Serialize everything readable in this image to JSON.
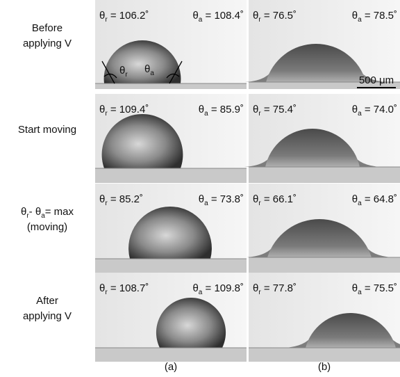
{
  "row_labels": [
    [
      [
        {
          "text": "Before"
        }
      ],
      [
        {
          "text": "applying V"
        }
      ]
    ],
    [
      [
        {
          "text": "Start moving"
        }
      ]
    ],
    [
      [
        {
          "text": "θ"
        },
        {
          "text": "r",
          "sub": true
        },
        {
          "text": "- θ"
        },
        {
          "text": "a",
          "sub": true
        },
        {
          "text": "= max"
        }
      ],
      [
        {
          "text": "(moving)"
        }
      ]
    ],
    [
      [
        {
          "text": "After"
        }
      ],
      [
        {
          "text": "applying V"
        }
      ]
    ]
  ],
  "panels": [
    [
      {
        "left": [
          {
            "text": "θ"
          },
          {
            "text": "r",
            "sub": true
          },
          {
            "text": " = 106.2˚"
          }
        ],
        "right": [
          {
            "text": "θ"
          },
          {
            "text": "a",
            "sub": true
          },
          {
            "text": " = 108.4˚"
          }
        ]
      },
      {
        "left": [
          {
            "text": "θ"
          },
          {
            "text": "r",
            "sub": true
          },
          {
            "text": " = 76.5˚"
          }
        ],
        "right": [
          {
            "text": "θ"
          },
          {
            "text": "a",
            "sub": true
          },
          {
            "text": " = 78.5˚"
          }
        ]
      }
    ],
    [
      {
        "left": [
          {
            "text": "θ"
          },
          {
            "text": "r",
            "sub": true
          },
          {
            "text": " = 109.4˚"
          }
        ],
        "right": [
          {
            "text": "θ"
          },
          {
            "text": "a",
            "sub": true
          },
          {
            "text": " = 85.9˚"
          }
        ]
      },
      {
        "left": [
          {
            "text": "θ"
          },
          {
            "text": "r",
            "sub": true
          },
          {
            "text": " = 75.4˚"
          }
        ],
        "right": [
          {
            "text": "θ"
          },
          {
            "text": "a",
            "sub": true
          },
          {
            "text": " = 74.0˚"
          }
        ]
      }
    ],
    [
      {
        "left": [
          {
            "text": "θ"
          },
          {
            "text": "r",
            "sub": true
          },
          {
            "text": " = 85.2˚"
          }
        ],
        "right": [
          {
            "text": "θ"
          },
          {
            "text": "a",
            "sub": true
          },
          {
            "text": " = 73.8˚"
          }
        ]
      },
      {
        "left": [
          {
            "text": "θ"
          },
          {
            "text": "r",
            "sub": true
          },
          {
            "text": " = 66.1˚"
          }
        ],
        "right": [
          {
            "text": "θ"
          },
          {
            "text": "a",
            "sub": true
          },
          {
            "text": " = 64.8˚"
          }
        ]
      }
    ],
    [
      {
        "left": [
          {
            "text": "θ"
          },
          {
            "text": "r",
            "sub": true
          },
          {
            "text": " = 108.7˚"
          }
        ],
        "right": [
          {
            "text": "θ"
          },
          {
            "text": "a",
            "sub": true
          },
          {
            "text": " = 109.8˚"
          }
        ]
      },
      {
        "left": [
          {
            "text": "θ"
          },
          {
            "text": "r",
            "sub": true
          },
          {
            "text": " = 77.8˚"
          }
        ],
        "right": [
          {
            "text": "θ"
          },
          {
            "text": "a",
            "sub": true
          },
          {
            "text": " = 75.5˚"
          }
        ]
      }
    ]
  ],
  "inset_labels": [
    [
      {
        "text": "θ"
      },
      {
        "text": "r",
        "sub": true
      }
    ],
    [
      {
        "text": "θ"
      },
      {
        "text": "a",
        "sub": true
      }
    ]
  ],
  "scale_bar": "500 μm",
  "column_labels": [
    "(a)",
    "(b)"
  ]
}
